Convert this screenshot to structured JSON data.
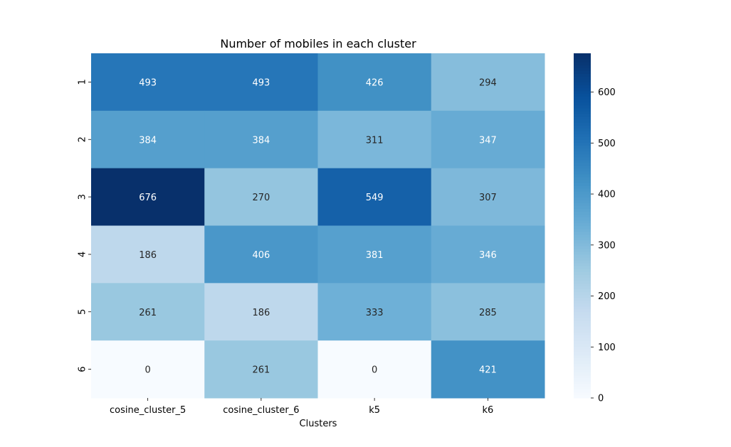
{
  "chart_data": {
    "type": "heatmap",
    "title": "Number of mobiles in each cluster",
    "xlabel": "Clusters",
    "ylabel": "",
    "x_categories": [
      "cosine_cluster_5",
      "cosine_cluster_6",
      "k5",
      "k6"
    ],
    "y_categories": [
      "1",
      "2",
      "3",
      "4",
      "5",
      "6"
    ],
    "values": [
      [
        493,
        493,
        426,
        294
      ],
      [
        384,
        384,
        311,
        347
      ],
      [
        676,
        270,
        549,
        307
      ],
      [
        186,
        406,
        381,
        346
      ],
      [
        261,
        186,
        333,
        285
      ],
      [
        0,
        261,
        0,
        421
      ]
    ],
    "colorbar": {
      "min": 0,
      "max": 676,
      "ticks": [
        0,
        100,
        200,
        300,
        400,
        500,
        600
      ],
      "colormap": "Blues"
    },
    "colors": {
      "ramp": [
        "#f7fbff",
        "#deebf7",
        "#c6dbef",
        "#9ecae1",
        "#6baed6",
        "#4292c6",
        "#2171b5",
        "#08519c",
        "#08306b"
      ],
      "text_light": "#ffffff",
      "text_dark": "#262626"
    }
  }
}
